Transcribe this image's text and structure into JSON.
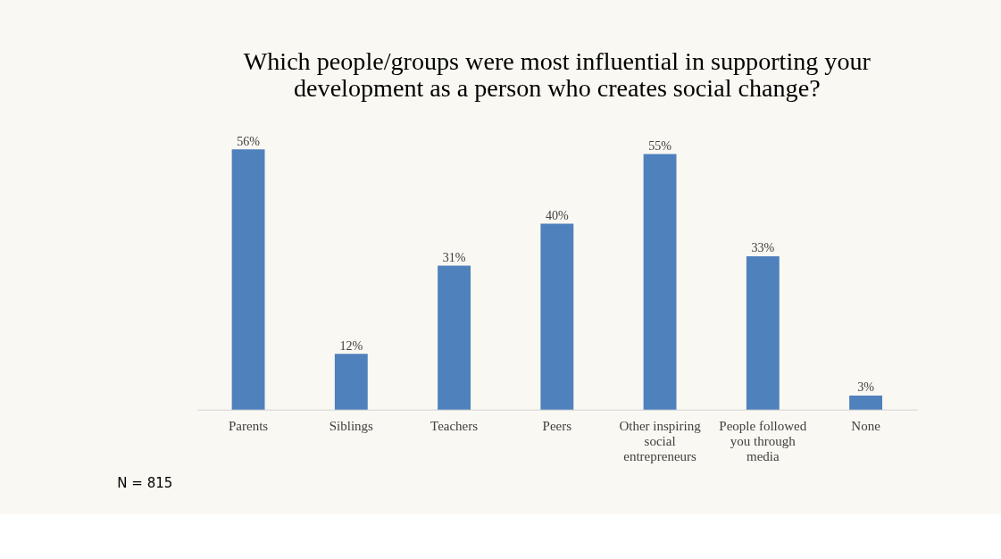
{
  "chart_data": {
    "type": "bar",
    "title": "Which people/groups were most influential in supporting your development as a person who creates social change?",
    "categories": [
      "Parents",
      "Siblings",
      "Teachers",
      "Peers",
      "Other inspiring social entrepreneurs",
      "People followed you through media",
      "None"
    ],
    "values": [
      56,
      12,
      31,
      40,
      55,
      33,
      3
    ],
    "value_labels": [
      "56%",
      "12%",
      "31%",
      "40%",
      "55%",
      "33%",
      "3%"
    ],
    "color": "#4f81bd",
    "annotations": [
      "N = 815"
    ]
  }
}
